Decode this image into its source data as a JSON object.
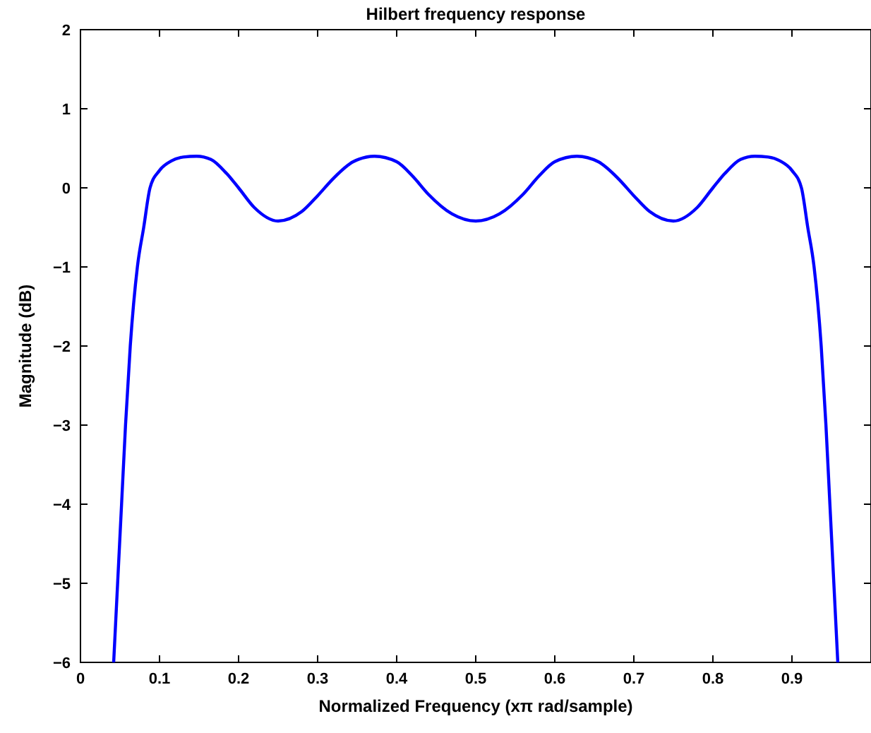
{
  "chart_data": {
    "type": "line",
    "title": "Hilbert frequency response",
    "xlabel": "Normalized Frequency (xπ rad/sample)",
    "ylabel": "Magnitude (dB)",
    "xlim": [
      0,
      1
    ],
    "ylim": [
      -6,
      2
    ],
    "xticks": [
      0,
      0.1,
      0.2,
      0.3,
      0.4,
      0.5,
      0.6,
      0.7,
      0.8,
      0.9
    ],
    "yticks": [
      {
        "value": -6,
        "label": "−6"
      },
      {
        "value": -5,
        "label": "−5"
      },
      {
        "value": -4,
        "label": "−4"
      },
      {
        "value": -3,
        "label": "−3"
      },
      {
        "value": -2,
        "label": "−2"
      },
      {
        "value": -1,
        "label": "−1"
      },
      0,
      1,
      2
    ],
    "grid": false,
    "marker": "none",
    "line_style": "solid",
    "series": [
      {
        "color": "#0000ff",
        "x": [
          0.042,
          0.047,
          0.052,
          0.057,
          0.063,
          0.072,
          0.08,
          0.088,
          0.1,
          0.115,
          0.13,
          0.147,
          0.165,
          0.185,
          0.2,
          0.22,
          0.25,
          0.28,
          0.3,
          0.32,
          0.345,
          0.372,
          0.4,
          0.42,
          0.44,
          0.47,
          0.5,
          0.53,
          0.56,
          0.58,
          0.6,
          0.628,
          0.655,
          0.68,
          0.7,
          0.72,
          0.75,
          0.78,
          0.8,
          0.815,
          0.835,
          0.853,
          0.87,
          0.885,
          0.9,
          0.912,
          0.92,
          0.928,
          0.937,
          0.943,
          0.948,
          0.953,
          0.958
        ],
        "values": [
          -6,
          -5,
          -4,
          -3,
          -2,
          -1,
          -0.5,
          0,
          0.22,
          0.34,
          0.39,
          0.4,
          0.36,
          0.18,
          0,
          -0.25,
          -0.42,
          -0.3,
          -0.1,
          0.12,
          0.33,
          0.4,
          0.33,
          0.15,
          -0.08,
          -0.33,
          -0.42,
          -0.33,
          -0.08,
          0.15,
          0.33,
          0.4,
          0.33,
          0.12,
          -0.1,
          -0.3,
          -0.42,
          -0.25,
          0,
          0.18,
          0.36,
          0.4,
          0.39,
          0.34,
          0.22,
          0,
          -0.5,
          -1,
          -2,
          -3,
          -4,
          -5,
          -6
        ]
      }
    ]
  }
}
